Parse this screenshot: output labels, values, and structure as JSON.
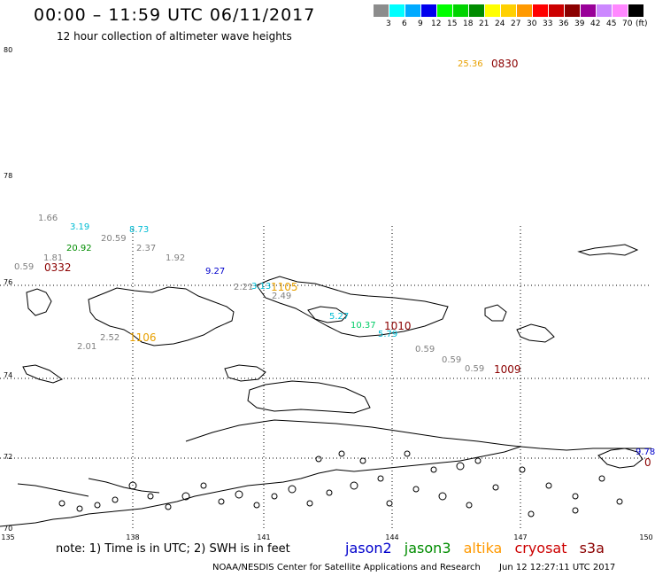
{
  "header": {
    "title": "00:00 – 11:59 UTC 06/11/2017",
    "subtitle": "12 hour collection of altimeter wave heights"
  },
  "legend": {
    "unit": "(ft)",
    "items": [
      {
        "label": "",
        "color": "#8c8c8c"
      },
      {
        "label": "3",
        "color": "#00ffff"
      },
      {
        "label": "6",
        "color": "#00aaff"
      },
      {
        "label": "9",
        "color": "#0000ee"
      },
      {
        "label": "12",
        "color": "#00ff00"
      },
      {
        "label": "15",
        "color": "#00d400"
      },
      {
        "label": "18",
        "color": "#008c00"
      },
      {
        "label": "21",
        "color": "#ffff00"
      },
      {
        "label": "24",
        "color": "#ffd000"
      },
      {
        "label": "27",
        "color": "#ff9900"
      },
      {
        "label": "30",
        "color": "#ff0000"
      },
      {
        "label": "33",
        "color": "#cc0000"
      },
      {
        "label": "36",
        "color": "#8b0000"
      },
      {
        "label": "39",
        "color": "#990099"
      },
      {
        "label": "42",
        "color": "#cc88ff"
      },
      {
        "label": "45",
        "color": "#ff88ff"
      },
      {
        "label": "70",
        "color": "#000000"
      }
    ]
  },
  "axes": {
    "lat_labels": [
      "80",
      "78",
      "76",
      "74",
      "72",
      "70"
    ],
    "lon_labels": [
      "135",
      "138",
      "141",
      "144",
      "147",
      "150"
    ]
  },
  "observations": [
    {
      "text": "25.36",
      "color": "#e8a000",
      "kind": "value"
    },
    {
      "text": "0830",
      "color": "#8b0000",
      "kind": "time"
    },
    {
      "text": "1.66",
      "color": "#808080",
      "kind": "value"
    },
    {
      "text": "3.19",
      "color": "#00bcd4",
      "kind": "value"
    },
    {
      "text": "8.73",
      "color": "#00bcd4",
      "kind": "value"
    },
    {
      "text": "20.92",
      "color": "#008c00",
      "kind": "value"
    },
    {
      "text": "20.59",
      "color": "#808080",
      "kind": "value"
    },
    {
      "text": "2.37",
      "color": "#808080",
      "kind": "value"
    },
    {
      "text": "1.81",
      "color": "#808080",
      "kind": "value"
    },
    {
      "text": "1.92",
      "color": "#808080",
      "kind": "value"
    },
    {
      "text": "0.59",
      "color": "#808080",
      "kind": "value"
    },
    {
      "text": "0332",
      "color": "#8b0000",
      "kind": "time"
    },
    {
      "text": "9.27",
      "color": "#0000cc",
      "kind": "value"
    },
    {
      "text": "2.21",
      "color": "#808080",
      "kind": "value"
    },
    {
      "text": "3.13",
      "color": "#00bcd4",
      "kind": "value"
    },
    {
      "text": "1105",
      "color": "#e8a000",
      "kind": "time"
    },
    {
      "text": "2.49",
      "color": "#808080",
      "kind": "value"
    },
    {
      "text": "5.27",
      "color": "#00bcd4",
      "kind": "value"
    },
    {
      "text": "10.37",
      "color": "#00cc66",
      "kind": "value"
    },
    {
      "text": "1010",
      "color": "#8b0000",
      "kind": "time"
    },
    {
      "text": "5.79",
      "color": "#00bcd4",
      "kind": "value"
    },
    {
      "text": "2.52",
      "color": "#808080",
      "kind": "value"
    },
    {
      "text": "1106",
      "color": "#e8a000",
      "kind": "time"
    },
    {
      "text": "2.01",
      "color": "#808080",
      "kind": "value"
    },
    {
      "text": "0.59",
      "color": "#808080",
      "kind": "value"
    },
    {
      "text": "0.59",
      "color": "#808080",
      "kind": "value"
    },
    {
      "text": "0.59",
      "color": "#808080",
      "kind": "value"
    },
    {
      "text": "1009",
      "color": "#8b0000",
      "kind": "time"
    },
    {
      "text": "9.78",
      "color": "#0000cc",
      "kind": "value"
    },
    {
      "text": "0",
      "color": "#8b0000",
      "kind": "time"
    }
  ],
  "note": "note: 1) Time is in UTC; 2) SWH is in feet",
  "satellites": [
    {
      "name": "jason2",
      "color": "#0000cc"
    },
    {
      "name": "jason3",
      "color": "#008c00"
    },
    {
      "name": "altika",
      "color": "#ff9900"
    },
    {
      "name": "cryosat",
      "color": "#cc0000"
    },
    {
      "name": "s3a",
      "color": "#8b0000"
    }
  ],
  "footer": {
    "source": "NOAA/NESDIS Center for Satellite Applications and Research",
    "timestamp": "Jun 12 12:27:11 UTC 2017"
  }
}
